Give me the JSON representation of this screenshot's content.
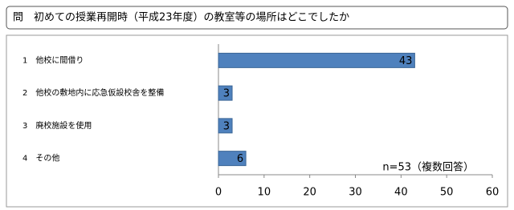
{
  "chart_data": {
    "type": "hbar",
    "title": "問　初めての授業再開時（平成23年度）の教室等の場所はどこでしたか",
    "categories": [
      "1　他校に間借り",
      "2　他校の敷地内に応急仮設校舎を整備",
      "3　廃校施設を使用",
      "4　その他"
    ],
    "values": [
      43,
      3,
      3,
      6
    ],
    "color": "#4f81bd",
    "xlim": [
      0,
      60
    ],
    "xticks": [
      0,
      10,
      20,
      30,
      40,
      50,
      60
    ],
    "annotation": "n=53（複数回答）"
  }
}
